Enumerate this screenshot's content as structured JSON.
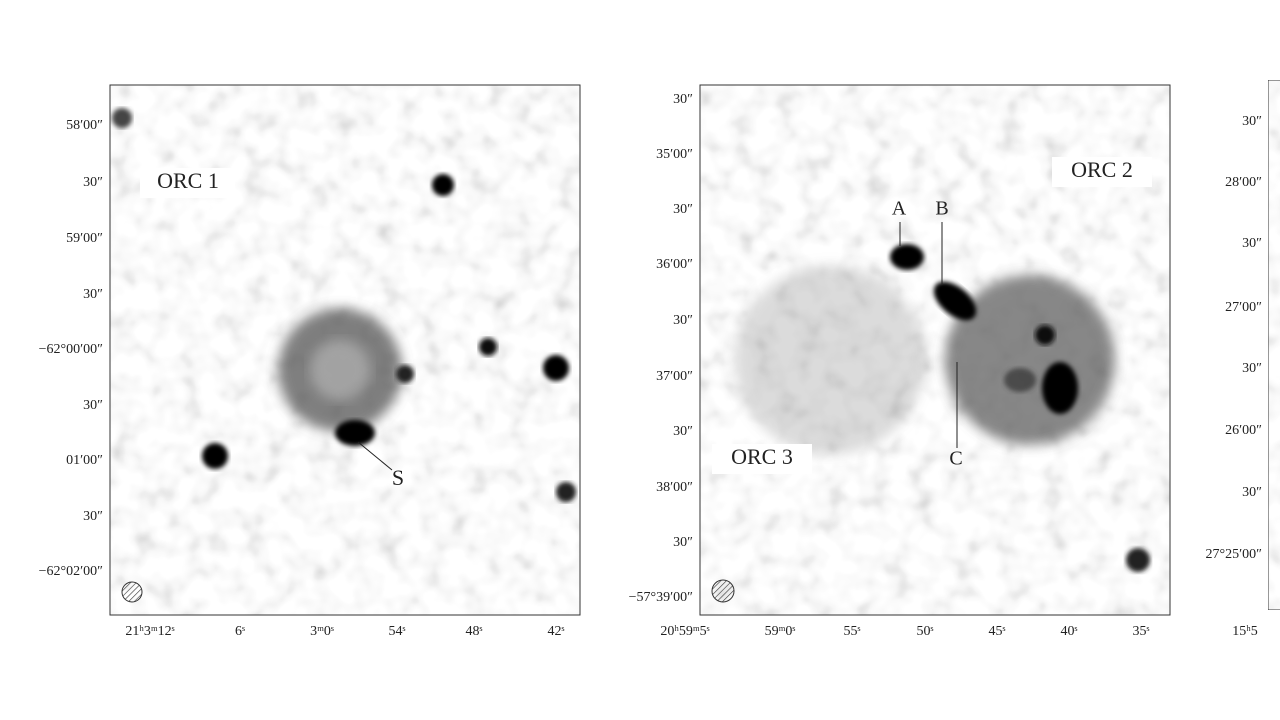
{
  "panels": [
    {
      "labels": [
        "ORC 1",
        "S"
      ],
      "yticks": [
        "58′00″",
        "30″",
        "59′00″",
        "30″",
        "−62°00′00″",
        "30″",
        "01′00″",
        "30″",
        "−62°02′00″"
      ],
      "xticks": [
        "21ʰ3ᵐ12ˢ",
        "6ˢ",
        "3ᵐ0ˢ",
        "54ˢ",
        "48ˢ",
        "42ˢ"
      ]
    },
    {
      "labels": [
        "ORC 2",
        "ORC 3",
        "A",
        "B",
        "C"
      ],
      "yticks": [
        "30″",
        "35′00″",
        "30″",
        "36′00″",
        "30″",
        "37′00″",
        "30″",
        "38′00″",
        "30″",
        "−57°39′00″"
      ],
      "xticks": [
        "20ʰ59ᵐ5ˢ",
        "59ᵐ0ˢ",
        "55ˢ",
        "50ˢ",
        "45ˢ",
        "40ˢ",
        "35ˢ"
      ]
    },
    {
      "yticks": [
        "30″",
        "28′00″",
        "30″",
        "27′00″",
        "30″",
        "26′00″",
        "30″",
        "27°25′00″"
      ],
      "xticks": [
        "15ʰ5"
      ]
    }
  ]
}
